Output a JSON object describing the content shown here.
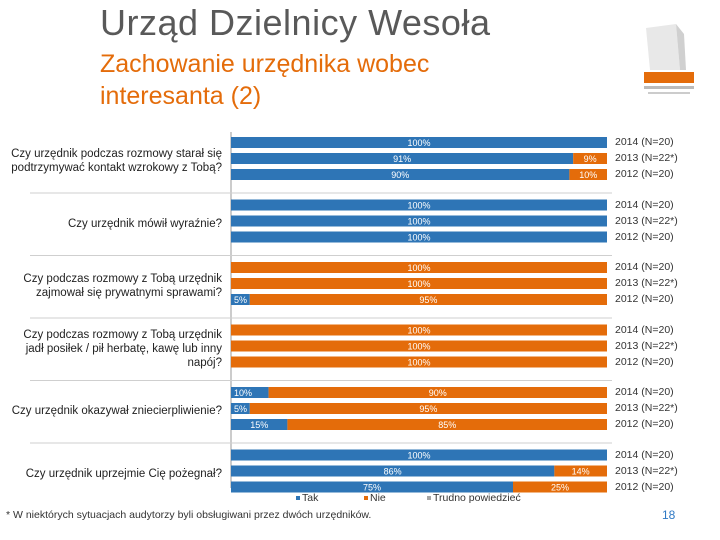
{
  "header": {
    "title": "Urząd Dzielnicy Wesoła",
    "subtitle": "Zachowanie urzędnika wobec interesanta (2)"
  },
  "footnote": "* W niektórych sytuacjach audytorzy byli obsługiwani przez dwóch urzędników.",
  "page_number": "18",
  "colors": {
    "tak": "#2e75b6",
    "nie": "#e46c0a",
    "trudno": "#a6a6a6",
    "title": "#595959",
    "subtitle": "#e46c0a"
  },
  "chart_data": {
    "type": "bar",
    "orientation": "horizontal",
    "stacked": true,
    "xlim": [
      0,
      100
    ],
    "grid": false,
    "legend_position": "bottom",
    "series": [
      {
        "name": "Tak",
        "color": "#2e75b6"
      },
      {
        "name": "Nie",
        "color": "#e46c0a"
      },
      {
        "name": "Trudno powiedzieć",
        "color": "#a6a6a6"
      }
    ],
    "groups": [
      {
        "question": "Czy urzędnik podczas rozmowy starał się podtrzymywać kontakt wzrokowy z Tobą?",
        "bars": [
          {
            "year": "2014 (N=20)",
            "values": [
              100,
              0,
              0
            ],
            "labels": [
              "100%",
              "",
              ""
            ]
          },
          {
            "year": "2013 (N=22*)",
            "values": [
              91,
              9,
              0
            ],
            "labels": [
              "91%",
              "9%",
              ""
            ]
          },
          {
            "year": "2012 (N=20)",
            "values": [
              90,
              10,
              0
            ],
            "labels": [
              "90%",
              "10%",
              ""
            ]
          }
        ]
      },
      {
        "question": "Czy urzędnik mówił wyraźnie?",
        "bars": [
          {
            "year": "2014 (N=20)",
            "values": [
              100,
              0,
              0
            ],
            "labels": [
              "100%",
              "",
              ""
            ]
          },
          {
            "year": "2013 (N=22*)",
            "values": [
              100,
              0,
              0
            ],
            "labels": [
              "100%",
              "",
              ""
            ]
          },
          {
            "year": "2012 (N=20)",
            "values": [
              100,
              0,
              0
            ],
            "labels": [
              "100%",
              "",
              ""
            ]
          }
        ]
      },
      {
        "question": "Czy podczas rozmowy z Tobą urzędnik zajmował się prywatnymi sprawami?",
        "bars": [
          {
            "year": "2014 (N=20)",
            "values": [
              0,
              100,
              0
            ],
            "labels": [
              "",
              "100%",
              ""
            ]
          },
          {
            "year": "2013 (N=22*)",
            "values": [
              0,
              100,
              0
            ],
            "labels": [
              "",
              "100%",
              ""
            ]
          },
          {
            "year": "2012 (N=20)",
            "values": [
              5,
              95,
              0
            ],
            "labels": [
              "5%",
              "95%",
              ""
            ]
          }
        ]
      },
      {
        "question": "Czy podczas rozmowy z Tobą urzędnik jadł posiłek / pił herbatę, kawę lub inny napój?",
        "bars": [
          {
            "year": "2014 (N=20)",
            "values": [
              0,
              100,
              0
            ],
            "labels": [
              "",
              "100%",
              ""
            ]
          },
          {
            "year": "2013 (N=22*)",
            "values": [
              0,
              100,
              0
            ],
            "labels": [
              "",
              "100%",
              ""
            ]
          },
          {
            "year": "2012 (N=20)",
            "values": [
              0,
              100,
              0
            ],
            "labels": [
              "",
              "100%",
              ""
            ]
          }
        ]
      },
      {
        "question": "Czy urzędnik okazywał zniecierpliwienie?",
        "bars": [
          {
            "year": "2014 (N=20)",
            "values": [
              10,
              90,
              0
            ],
            "labels": [
              "10%",
              "90%",
              ""
            ]
          },
          {
            "year": "2013 (N=22*)",
            "values": [
              5,
              95,
              0
            ],
            "labels": [
              "5%",
              "95%",
              ""
            ]
          },
          {
            "year": "2012 (N=20)",
            "values": [
              15,
              85,
              0
            ],
            "labels": [
              "15%",
              "85%",
              ""
            ]
          }
        ]
      },
      {
        "question": "Czy urzędnik uprzejmie Cię pożegnał?",
        "bars": [
          {
            "year": "2014 (N=20)",
            "values": [
              100,
              0,
              0
            ],
            "labels": [
              "100%",
              "",
              ""
            ]
          },
          {
            "year": "2013 (N=22*)",
            "values": [
              86,
              14,
              0
            ],
            "labels": [
              "86%",
              "14%",
              ""
            ]
          },
          {
            "year": "2012 (N=20)",
            "values": [
              75,
              25,
              0
            ],
            "labels": [
              "75%",
              "25%",
              ""
            ]
          }
        ]
      }
    ]
  }
}
